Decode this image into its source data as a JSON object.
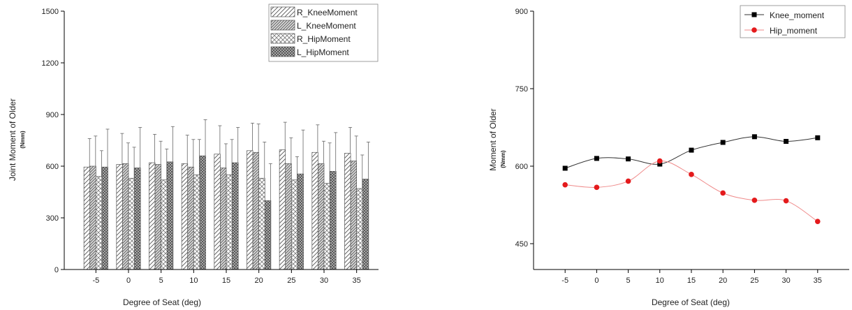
{
  "chart_data": [
    {
      "type": "bar",
      "xlabel": "Degree of Seat (deg)",
      "ylabel": "Joint Moment of Older",
      "ylabel_unit": "(Nmm)",
      "ylim": [
        0,
        1500
      ],
      "yticks": [
        0,
        300,
        600,
        900,
        1200,
        1500
      ],
      "categories": [
        "-5",
        "0",
        "5",
        "10",
        "15",
        "20",
        "25",
        "30",
        "35"
      ],
      "legend_position": "top-right",
      "series": [
        {
          "name": "R_KneeMoment",
          "pattern": "hatch-light",
          "values": [
            595,
            610,
            620,
            615,
            670,
            690,
            695,
            680,
            675
          ],
          "errors": [
            165,
            180,
            165,
            165,
            165,
            160,
            160,
            160,
            150
          ]
        },
        {
          "name": "L_KneeMoment",
          "pattern": "hatch-dense",
          "values": [
            600,
            615,
            610,
            595,
            590,
            680,
            615,
            615,
            630
          ],
          "errors": [
            175,
            120,
            135,
            160,
            140,
            165,
            150,
            130,
            145
          ]
        },
        {
          "name": "R_HipMoment",
          "pattern": "crosshatch",
          "values": [
            540,
            530,
            520,
            550,
            550,
            530,
            520,
            500,
            470
          ],
          "errors": [
            150,
            180,
            180,
            205,
            205,
            210,
            135,
            235,
            195
          ]
        },
        {
          "name": "L_HipMoment",
          "pattern": "crosshatch-dense",
          "values": [
            595,
            590,
            625,
            660,
            620,
            400,
            555,
            570,
            525
          ],
          "errors": [
            220,
            235,
            205,
            210,
            205,
            215,
            255,
            225,
            215
          ]
        }
      ]
    },
    {
      "type": "line",
      "xlabel": "Degree of Seat (deg)",
      "ylabel": "Moment of Older",
      "ylabel_unit": "(Nmm)",
      "ylim": [
        400,
        900
      ],
      "yticks": [
        450,
        600,
        750,
        900
      ],
      "x": [
        -5,
        0,
        5,
        10,
        15,
        20,
        25,
        30,
        35
      ],
      "xticks": [
        "-5",
        "0",
        "5",
        "10",
        "15",
        "20",
        "25",
        "30",
        "35"
      ],
      "legend_position": "top-right",
      "series": [
        {
          "name": "Knee_moment",
          "color": "#000000",
          "marker": "square",
          "values": [
            596,
            615,
            614,
            604,
            631,
            646,
            657,
            648,
            655
          ]
        },
        {
          "name": "Hip_moment",
          "color": "#e41a1c",
          "marker": "circle",
          "values": [
            564,
            559,
            571,
            610,
            584,
            548,
            534,
            533,
            493
          ]
        }
      ]
    }
  ]
}
